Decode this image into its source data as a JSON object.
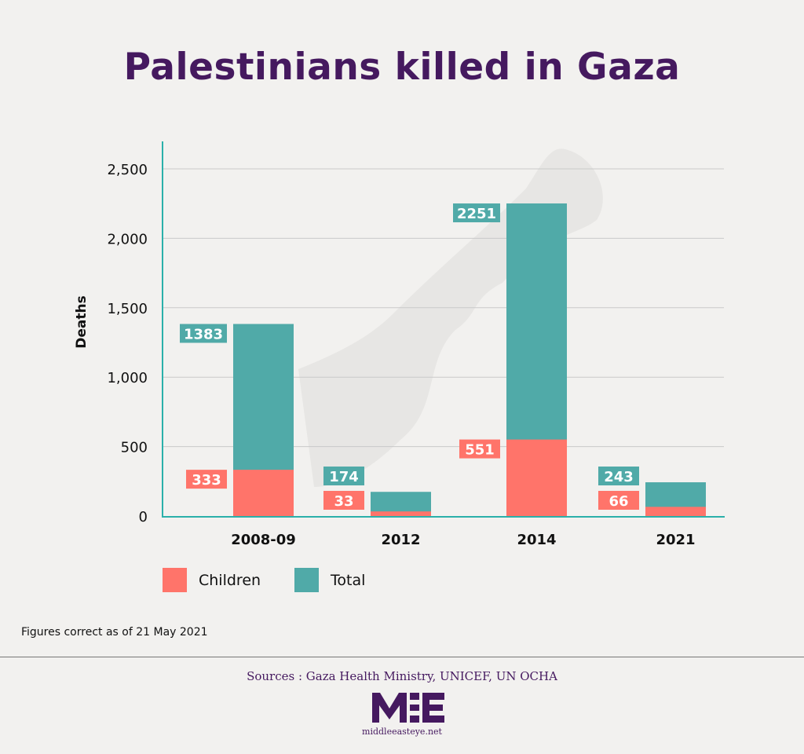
{
  "title": "Palestinians killed in Gaza",
  "chart_data": {
    "type": "bar",
    "categories": [
      "2008-09",
      "2012",
      "2014",
      "2021"
    ],
    "series": [
      {
        "name": "Children",
        "values": [
          333,
          33,
          551,
          66
        ],
        "color": "#ff746a"
      },
      {
        "name": "Total",
        "values": [
          1383,
          174,
          2251,
          243
        ],
        "color": "#50aaa8"
      }
    ],
    "ylabel": "Deaths",
    "xlabel": "",
    "ylim": [
      0,
      2700
    ],
    "yticks": [
      0,
      500,
      1000,
      1500,
      2000,
      2500
    ],
    "ytick_labels": [
      "0",
      "500",
      "1,000",
      "1,500",
      "2,000",
      "2,500"
    ],
    "grid": "horizontal",
    "legend": "bottom-left"
  },
  "colors": {
    "accent": "#45195f",
    "axis": "#2bb0aa"
  },
  "note": "Figures correct as of 21 May 2021",
  "sources": "Sources : Gaza Health Ministry, UNICEF, UN OCHA",
  "logo_text": "MEE",
  "site": "middleeasteye.net"
}
